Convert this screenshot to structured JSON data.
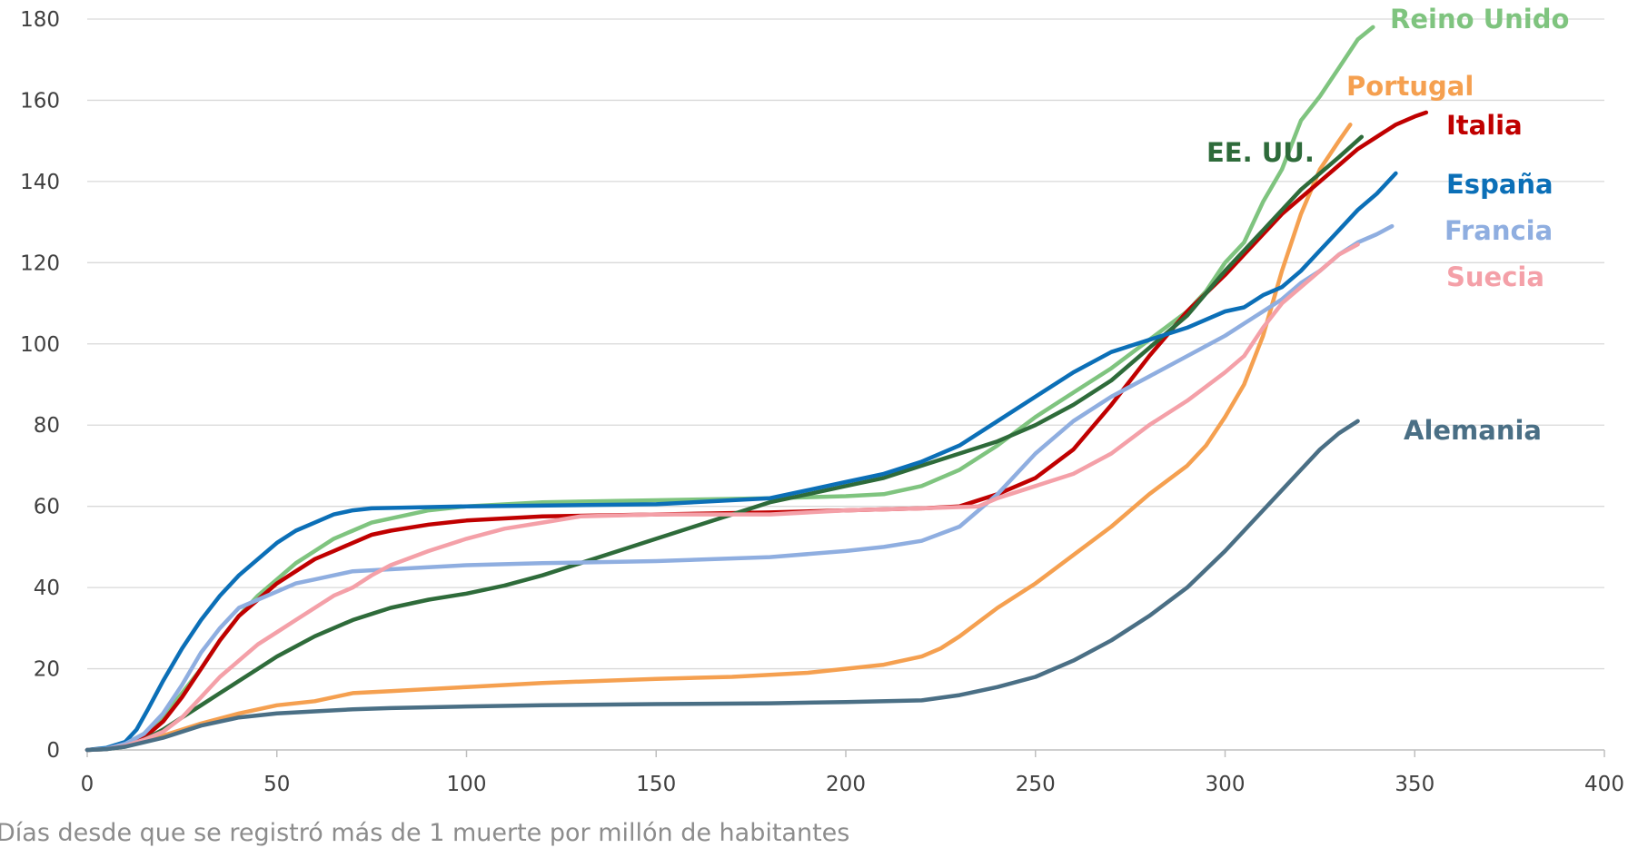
{
  "chart_data": {
    "type": "line",
    "title": "",
    "xlabel": "Días desde que se registró más de 1 muerte por millón de habitantes",
    "ylabel": "",
    "xlim": [
      0,
      400
    ],
    "ylim": [
      0,
      180
    ],
    "x_ticks": [
      "0",
      "50",
      "100",
      "150",
      "200",
      "250",
      "300",
      "350",
      "400"
    ],
    "y_ticks": [
      "0",
      "20",
      "40",
      "60",
      "80",
      "100",
      "120",
      "140",
      "160",
      "180"
    ],
    "grid": "horizontal",
    "legend": "none (labels at line ends)",
    "series": [
      {
        "name": "Reino Unido",
        "color": "#7fc47f",
        "points": [
          [
            0,
            0
          ],
          [
            5,
            0.3
          ],
          [
            10,
            1.5
          ],
          [
            15,
            4
          ],
          [
            20,
            8
          ],
          [
            25,
            14
          ],
          [
            30,
            20
          ],
          [
            35,
            27
          ],
          [
            40,
            33
          ],
          [
            45,
            38
          ],
          [
            50,
            42
          ],
          [
            55,
            46
          ],
          [
            60,
            49
          ],
          [
            65,
            52
          ],
          [
            70,
            54
          ],
          [
            75,
            56
          ],
          [
            80,
            57
          ],
          [
            90,
            59
          ],
          [
            100,
            60
          ],
          [
            120,
            61
          ],
          [
            150,
            61.5
          ],
          [
            180,
            62
          ],
          [
            200,
            62.5
          ],
          [
            210,
            63
          ],
          [
            220,
            65
          ],
          [
            230,
            69
          ],
          [
            240,
            75
          ],
          [
            250,
            82
          ],
          [
            260,
            88
          ],
          [
            270,
            94
          ],
          [
            280,
            101
          ],
          [
            290,
            108
          ],
          [
            295,
            113
          ],
          [
            300,
            120
          ],
          [
            305,
            125
          ],
          [
            310,
            135
          ],
          [
            315,
            143
          ],
          [
            320,
            155
          ],
          [
            325,
            161
          ],
          [
            330,
            168
          ],
          [
            335,
            175
          ],
          [
            339,
            178
          ]
        ]
      },
      {
        "name": "Portugal",
        "color": "#f5a050",
        "points": [
          [
            0,
            0
          ],
          [
            5,
            0.3
          ],
          [
            10,
            1
          ],
          [
            20,
            3.5
          ],
          [
            30,
            6.5
          ],
          [
            40,
            9
          ],
          [
            50,
            11
          ],
          [
            60,
            12
          ],
          [
            70,
            14
          ],
          [
            80,
            14.5
          ],
          [
            100,
            15.5
          ],
          [
            120,
            16.5
          ],
          [
            150,
            17.5
          ],
          [
            170,
            18
          ],
          [
            190,
            19
          ],
          [
            200,
            20
          ],
          [
            210,
            21
          ],
          [
            220,
            23
          ],
          [
            225,
            25
          ],
          [
            230,
            28
          ],
          [
            240,
            35
          ],
          [
            250,
            41
          ],
          [
            260,
            48
          ],
          [
            270,
            55
          ],
          [
            280,
            63
          ],
          [
            290,
            70
          ],
          [
            295,
            75
          ],
          [
            300,
            82
          ],
          [
            305,
            90
          ],
          [
            310,
            102
          ],
          [
            315,
            118
          ],
          [
            320,
            132
          ],
          [
            325,
            143
          ],
          [
            330,
            150
          ],
          [
            333,
            154
          ]
        ]
      },
      {
        "name": "Italia",
        "color": "#c00000",
        "points": [
          [
            0,
            0
          ],
          [
            5,
            0.3
          ],
          [
            10,
            1
          ],
          [
            15,
            3
          ],
          [
            20,
            7
          ],
          [
            25,
            13
          ],
          [
            30,
            20
          ],
          [
            35,
            27
          ],
          [
            40,
            33
          ],
          [
            45,
            37
          ],
          [
            50,
            41
          ],
          [
            55,
            44
          ],
          [
            60,
            47
          ],
          [
            65,
            49
          ],
          [
            70,
            51
          ],
          [
            75,
            53
          ],
          [
            80,
            54
          ],
          [
            90,
            55.5
          ],
          [
            100,
            56.5
          ],
          [
            120,
            57.5
          ],
          [
            150,
            58
          ],
          [
            180,
            58.5
          ],
          [
            200,
            59
          ],
          [
            220,
            59.5
          ],
          [
            230,
            60
          ],
          [
            240,
            63
          ],
          [
            250,
            67
          ],
          [
            260,
            74
          ],
          [
            270,
            85
          ],
          [
            280,
            97
          ],
          [
            290,
            108
          ],
          [
            300,
            117
          ],
          [
            305,
            122
          ],
          [
            310,
            127
          ],
          [
            315,
            132
          ],
          [
            320,
            136
          ],
          [
            325,
            140
          ],
          [
            330,
            144
          ],
          [
            335,
            148
          ],
          [
            340,
            151
          ],
          [
            345,
            154
          ],
          [
            350,
            156
          ],
          [
            353,
            157
          ]
        ]
      },
      {
        "name": "EE. UU.",
        "color": "#2e6b3a",
        "points": [
          [
            0,
            0
          ],
          [
            5,
            0.2
          ],
          [
            10,
            0.8
          ],
          [
            15,
            2.5
          ],
          [
            20,
            5
          ],
          [
            25,
            8
          ],
          [
            30,
            11
          ],
          [
            35,
            14
          ],
          [
            40,
            17
          ],
          [
            45,
            20
          ],
          [
            50,
            23
          ],
          [
            55,
            25.5
          ],
          [
            60,
            28
          ],
          [
            65,
            30
          ],
          [
            70,
            32
          ],
          [
            75,
            33.5
          ],
          [
            80,
            35
          ],
          [
            90,
            37
          ],
          [
            100,
            38.5
          ],
          [
            110,
            40.5
          ],
          [
            120,
            43
          ],
          [
            130,
            46
          ],
          [
            140,
            49
          ],
          [
            150,
            52
          ],
          [
            160,
            55
          ],
          [
            170,
            58
          ],
          [
            180,
            61
          ],
          [
            190,
            63
          ],
          [
            200,
            65
          ],
          [
            210,
            67
          ],
          [
            220,
            70
          ],
          [
            230,
            73
          ],
          [
            240,
            76
          ],
          [
            250,
            80
          ],
          [
            260,
            85
          ],
          [
            270,
            91
          ],
          [
            280,
            99
          ],
          [
            290,
            107
          ],
          [
            300,
            118
          ],
          [
            310,
            128
          ],
          [
            320,
            138
          ],
          [
            330,
            146
          ],
          [
            336,
            151
          ]
        ]
      },
      {
        "name": "España",
        "color": "#0b6fb7",
        "points": [
          [
            0,
            0
          ],
          [
            5,
            0.5
          ],
          [
            10,
            2
          ],
          [
            13,
            5
          ],
          [
            16,
            10
          ],
          [
            20,
            17
          ],
          [
            25,
            25
          ],
          [
            30,
            32
          ],
          [
            35,
            38
          ],
          [
            40,
            43
          ],
          [
            45,
            47
          ],
          [
            50,
            51
          ],
          [
            55,
            54
          ],
          [
            60,
            56
          ],
          [
            65,
            58
          ],
          [
            70,
            59
          ],
          [
            75,
            59.5
          ],
          [
            100,
            60
          ],
          [
            150,
            60.5
          ],
          [
            180,
            62
          ],
          [
            190,
            64
          ],
          [
            200,
            66
          ],
          [
            210,
            68
          ],
          [
            220,
            71
          ],
          [
            230,
            75
          ],
          [
            240,
            81
          ],
          [
            250,
            87
          ],
          [
            260,
            93
          ],
          [
            270,
            98
          ],
          [
            280,
            101
          ],
          [
            290,
            104
          ],
          [
            300,
            108
          ],
          [
            305,
            109
          ],
          [
            310,
            112
          ],
          [
            315,
            114
          ],
          [
            320,
            118
          ],
          [
            325,
            123
          ],
          [
            330,
            128
          ],
          [
            335,
            133
          ],
          [
            340,
            137
          ],
          [
            345,
            142
          ]
        ]
      },
      {
        "name": "Francia",
        "color": "#8faee0",
        "points": [
          [
            0,
            0
          ],
          [
            5,
            0.3
          ],
          [
            10,
            1.5
          ],
          [
            15,
            4
          ],
          [
            20,
            9
          ],
          [
            25,
            16
          ],
          [
            30,
            24
          ],
          [
            35,
            30
          ],
          [
            40,
            35
          ],
          [
            45,
            37
          ],
          [
            50,
            39
          ],
          [
            55,
            41
          ],
          [
            60,
            42
          ],
          [
            65,
            43
          ],
          [
            70,
            44
          ],
          [
            80,
            44.5
          ],
          [
            100,
            45.5
          ],
          [
            120,
            46
          ],
          [
            150,
            46.5
          ],
          [
            180,
            47.5
          ],
          [
            200,
            49
          ],
          [
            210,
            50
          ],
          [
            220,
            51.5
          ],
          [
            230,
            55
          ],
          [
            240,
            63
          ],
          [
            250,
            73
          ],
          [
            260,
            81
          ],
          [
            270,
            87
          ],
          [
            280,
            92
          ],
          [
            290,
            97
          ],
          [
            300,
            102
          ],
          [
            305,
            105
          ],
          [
            310,
            108
          ],
          [
            315,
            111
          ],
          [
            320,
            115
          ],
          [
            325,
            118
          ],
          [
            330,
            122
          ],
          [
            335,
            125
          ],
          [
            340,
            127
          ],
          [
            344,
            129
          ]
        ]
      },
      {
        "name": "Suecia",
        "color": "#f4a0a8",
        "points": [
          [
            0,
            0
          ],
          [
            5,
            0.2
          ],
          [
            10,
            1
          ],
          [
            15,
            2.5
          ],
          [
            20,
            4.5
          ],
          [
            25,
            8
          ],
          [
            30,
            13
          ],
          [
            35,
            18
          ],
          [
            40,
            22
          ],
          [
            45,
            26
          ],
          [
            50,
            29
          ],
          [
            55,
            32
          ],
          [
            60,
            35
          ],
          [
            65,
            38
          ],
          [
            70,
            40
          ],
          [
            75,
            43
          ],
          [
            80,
            45.5
          ],
          [
            90,
            49
          ],
          [
            100,
            52
          ],
          [
            110,
            54.5
          ],
          [
            120,
            56
          ],
          [
            130,
            57.5
          ],
          [
            150,
            58
          ],
          [
            180,
            58
          ],
          [
            200,
            59
          ],
          [
            220,
            59.5
          ],
          [
            235,
            60
          ],
          [
            240,
            62
          ],
          [
            250,
            65
          ],
          [
            260,
            68
          ],
          [
            270,
            73
          ],
          [
            280,
            80
          ],
          [
            290,
            86
          ],
          [
            300,
            93
          ],
          [
            305,
            97
          ],
          [
            310,
            104
          ],
          [
            315,
            110
          ],
          [
            320,
            114
          ],
          [
            325,
            118
          ],
          [
            330,
            122
          ],
          [
            335,
            124.5
          ]
        ]
      },
      {
        "name": "Alemania",
        "color": "#4a6f85",
        "points": [
          [
            0,
            0
          ],
          [
            5,
            0.2
          ],
          [
            10,
            0.8
          ],
          [
            20,
            3
          ],
          [
            30,
            6
          ],
          [
            40,
            8
          ],
          [
            50,
            9
          ],
          [
            60,
            9.5
          ],
          [
            70,
            10
          ],
          [
            80,
            10.3
          ],
          [
            100,
            10.7
          ],
          [
            120,
            11
          ],
          [
            150,
            11.3
          ],
          [
            180,
            11.5
          ],
          [
            200,
            11.8
          ],
          [
            220,
            12.2
          ],
          [
            230,
            13.5
          ],
          [
            240,
            15.5
          ],
          [
            250,
            18
          ],
          [
            260,
            22
          ],
          [
            270,
            27
          ],
          [
            280,
            33
          ],
          [
            290,
            40
          ],
          [
            300,
            49
          ],
          [
            305,
            54
          ],
          [
            310,
            59
          ],
          [
            315,
            64
          ],
          [
            320,
            69
          ],
          [
            325,
            74
          ],
          [
            330,
            78
          ],
          [
            335,
            81
          ]
        ]
      }
    ]
  }
}
